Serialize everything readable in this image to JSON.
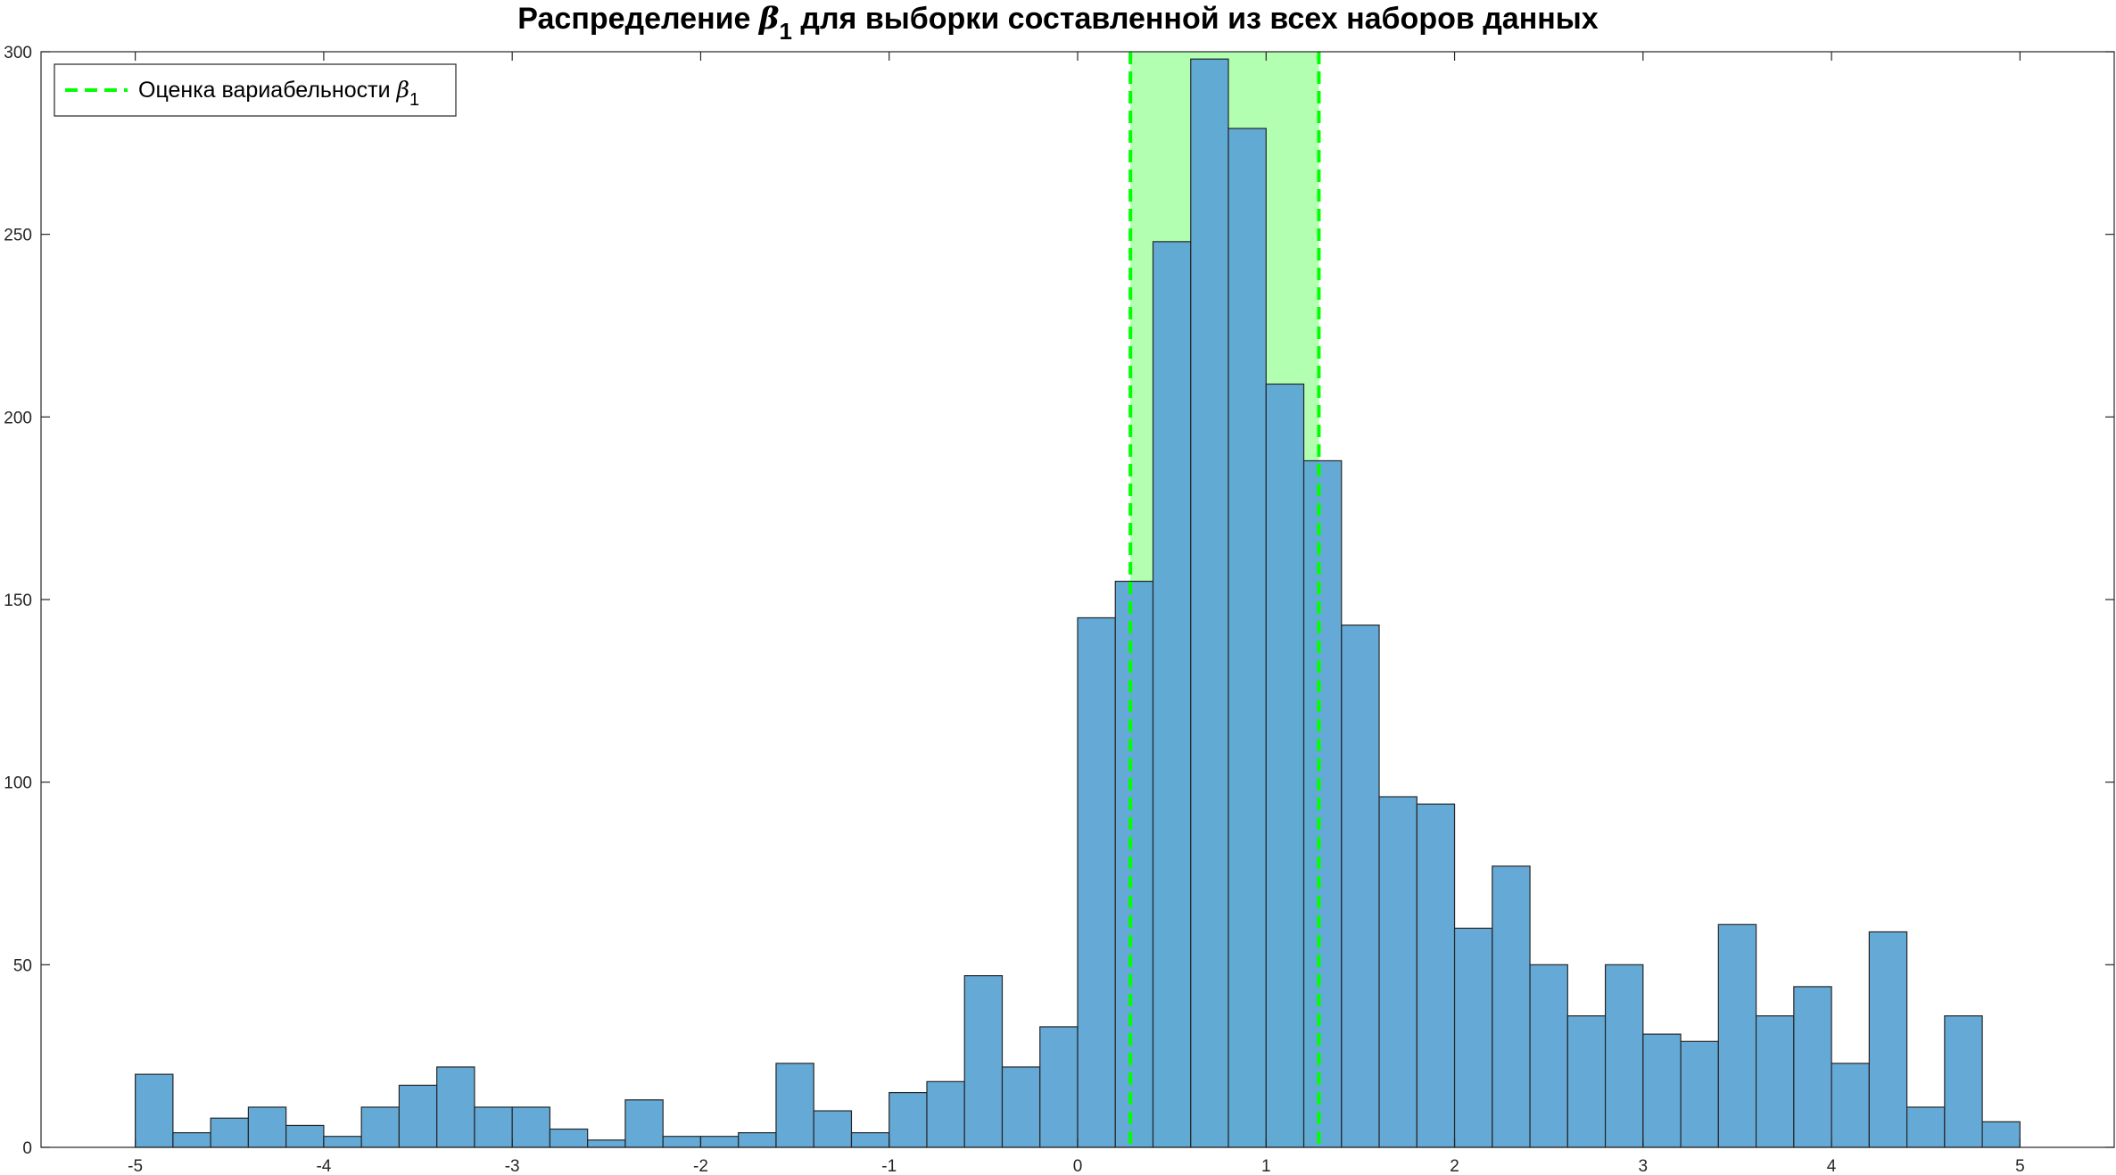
{
  "chart_data": {
    "type": "bar",
    "title": {
      "prefix": "Распределение ",
      "symbol": "β",
      "subscript": "1",
      "suffix": " для выборки составленной из всех наборов данных"
    },
    "xlabel": "",
    "ylabel": "",
    "xlim": [
      -5.5,
      5.5
    ],
    "ylim": [
      0,
      300
    ],
    "xticks": [
      -5,
      -4,
      -3,
      -2,
      -1,
      0,
      1,
      2,
      3,
      4,
      5
    ],
    "yticks": [
      0,
      50,
      100,
      150,
      200,
      250,
      300
    ],
    "grid": false,
    "bin_start": -5.0,
    "bin_width": 0.2,
    "series": [
      {
        "values": [
          20,
          4,
          8,
          11,
          6,
          3,
          11,
          17,
          22,
          11,
          11,
          5,
          2,
          13,
          3,
          3,
          4,
          23,
          10,
          4,
          15,
          18,
          47,
          22,
          33,
          145,
          155,
          248,
          298,
          279,
          209,
          188,
          143,
          96,
          94,
          60,
          77,
          50,
          36,
          50,
          31,
          29,
          61,
          36,
          44,
          23,
          59,
          11,
          36,
          7
        ],
        "color": "#5da5d5",
        "edge_color": "#262626"
      }
    ],
    "variability_band": {
      "x_min": 0.28,
      "x_max": 1.28,
      "fill_color": "#66ff66",
      "fill_opacity": 0.5,
      "line_color": "#00ff00"
    },
    "legend": {
      "position": "top-left",
      "label_prefix": "Оценка вариабельности ",
      "symbol": "β",
      "subscript": "1"
    }
  }
}
